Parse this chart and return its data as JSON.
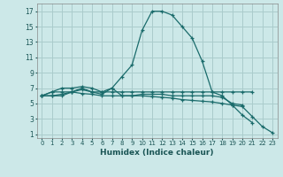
{
  "xlabel": "Humidex (Indice chaleur)",
  "background_color": "#cce8e8",
  "grid_color": "#aacccc",
  "line_color": "#1a6b6b",
  "xlim": [
    -0.5,
    23.5
  ],
  "ylim": [
    0.5,
    18.0
  ],
  "xticks": [
    0,
    1,
    2,
    3,
    4,
    5,
    6,
    7,
    8,
    9,
    10,
    11,
    12,
    13,
    14,
    15,
    16,
    17,
    18,
    19,
    20,
    21,
    22,
    23
  ],
  "yticks": [
    1,
    3,
    5,
    7,
    9,
    11,
    13,
    15,
    17
  ],
  "series": [
    [
      6.0,
      6.5,
      6.5,
      6.5,
      7.0,
      6.5,
      6.5,
      7.0,
      8.5,
      10.0,
      14.5,
      17.0,
      17.0,
      16.5,
      15.0,
      13.5,
      10.5,
      6.5,
      6.5,
      6.5,
      6.5,
      6.5,
      null,
      null
    ],
    [
      6.0,
      6.5,
      7.0,
      7.0,
      7.2,
      7.0,
      6.5,
      6.5,
      6.5,
      6.5,
      6.5,
      6.5,
      6.5,
      6.5,
      6.5,
      6.5,
      6.5,
      6.5,
      6.0,
      4.8,
      3.5,
      2.5,
      null,
      null
    ],
    [
      6.0,
      6.0,
      6.2,
      6.5,
      6.3,
      6.2,
      6.0,
      6.0,
      6.0,
      6.0,
      6.0,
      5.9,
      5.8,
      5.7,
      5.5,
      5.4,
      5.3,
      5.2,
      5.0,
      4.8,
      4.6,
      3.3,
      2.0,
      1.2
    ],
    [
      6.0,
      6.0,
      6.0,
      6.5,
      6.8,
      6.5,
      6.2,
      7.0,
      6.0,
      6.0,
      6.2,
      6.2,
      6.2,
      6.0,
      6.0,
      6.0,
      6.0,
      6.0,
      5.8,
      5.0,
      4.8,
      null,
      null,
      null
    ]
  ]
}
